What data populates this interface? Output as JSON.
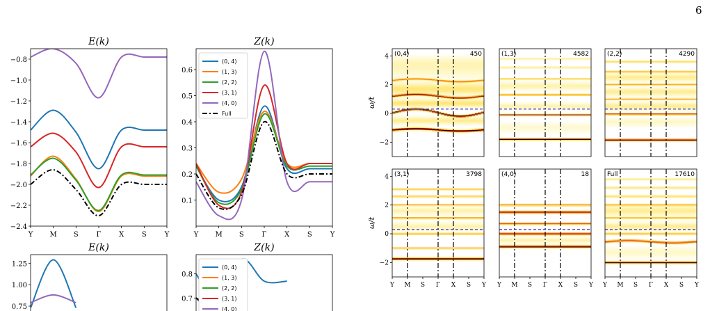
{
  "page_number": "6",
  "colors": {
    "(0, 4)": "#1f77b4",
    "(1, 3)": "#ff7f0e",
    "(2, 2)": "#2ca02c",
    "(3, 1)": "#d62728",
    "(4, 0)": "#9467bd",
    "Full": "#000000"
  },
  "kpath_labels": [
    "Y",
    "M",
    "S",
    "Γ",
    "X",
    "S",
    "Y"
  ],
  "chart_data": [
    {
      "type": "line",
      "title": "E(k)",
      "x": [
        0,
        1,
        2,
        3,
        4,
        5,
        6
      ],
      "xticklabels": [
        "Y",
        "M",
        "S",
        "Γ",
        "X",
        "S",
        "Y"
      ],
      "ylim": [
        -2.4,
        -0.7
      ],
      "yticks": [
        -2.4,
        -2.2,
        -2.0,
        -1.8,
        -1.6,
        -1.4,
        -1.2,
        -1.0,
        -0.8
      ],
      "yticklabels": [
        "−2.4",
        "−2.2",
        "−2.0",
        "−1.8",
        "−1.6",
        "−1.4",
        "−1.2",
        "−1.0",
        "−0.8"
      ],
      "series": [
        {
          "name": "(0, 4)",
          "values": [
            -1.48,
            -1.29,
            -1.5,
            -1.85,
            -1.48,
            -1.48,
            -1.48
          ]
        },
        {
          "name": "(1, 3)",
          "values": [
            -1.92,
            -1.73,
            -1.95,
            -2.26,
            -1.92,
            -1.92,
            -1.92
          ]
        },
        {
          "name": "(2, 2)",
          "values": [
            -1.91,
            -1.75,
            -1.96,
            -2.25,
            -1.91,
            -1.91,
            -1.91
          ]
        },
        {
          "name": "(3, 1)",
          "values": [
            -1.64,
            -1.51,
            -1.69,
            -2.03,
            -1.64,
            -1.64,
            -1.64
          ]
        },
        {
          "name": "(4, 0)",
          "values": [
            -0.78,
            -0.7,
            -0.84,
            -1.17,
            -0.78,
            -0.78,
            -0.78
          ]
        },
        {
          "name": "Full",
          "dashed": true,
          "values": [
            -2.0,
            -1.86,
            -2.05,
            -2.3,
            -2.0,
            -2.0,
            -2.0
          ]
        }
      ]
    },
    {
      "type": "line",
      "title": "Z(k)",
      "x": [
        0,
        1,
        2,
        3,
        4,
        5,
        6
      ],
      "xticklabels": [
        "Y",
        "M",
        "S",
        "Γ",
        "X",
        "S",
        "Y"
      ],
      "ylim": [
        0.0,
        0.68
      ],
      "yticks": [
        0.1,
        0.2,
        0.3,
        0.4,
        0.5,
        0.6
      ],
      "yticklabels": [
        "0.1",
        "0.2",
        "0.3",
        "0.4",
        "0.5",
        "0.6"
      ],
      "legend": "top-left",
      "series": [
        {
          "name": "(0, 4)",
          "values": [
            0.23,
            0.1,
            0.15,
            0.46,
            0.22,
            0.22,
            0.22
          ]
        },
        {
          "name": "(1, 3)",
          "values": [
            0.24,
            0.13,
            0.18,
            0.44,
            0.24,
            0.24,
            0.24
          ]
        },
        {
          "name": "(2, 2)",
          "values": [
            0.23,
            0.09,
            0.14,
            0.43,
            0.23,
            0.23,
            0.23
          ]
        },
        {
          "name": "(3, 1)",
          "values": [
            0.24,
            0.08,
            0.13,
            0.54,
            0.24,
            0.24,
            0.24
          ]
        },
        {
          "name": "(4, 0)",
          "values": [
            0.17,
            0.04,
            0.1,
            0.67,
            0.17,
            0.17,
            0.17
          ]
        },
        {
          "name": "Full",
          "dashed": true,
          "values": [
            0.2,
            0.07,
            0.12,
            0.4,
            0.2,
            0.2,
            0.2
          ]
        }
      ]
    },
    {
      "type": "line",
      "title": "E(k)",
      "partial": true,
      "ylim": [
        0.62,
        1.35
      ],
      "yticks": [
        0.75,
        1.0,
        1.25
      ],
      "yticklabels": [
        "0.75",
        "1.00",
        "1.25"
      ],
      "series": [
        {
          "name": "(0, 4)",
          "values": [
            0.73,
            1.29,
            0.73
          ]
        },
        {
          "name": "(4, 0)",
          "values": [
            0.79,
            0.88,
            0.79
          ]
        }
      ]
    },
    {
      "type": "line",
      "title": "Z(k)",
      "partial": true,
      "legend": "top-left",
      "ylim": [
        0.62,
        0.88
      ],
      "yticks": [
        0.7,
        0.8
      ],
      "yticklabels": [
        "0.7",
        "0.8"
      ],
      "series": [
        {
          "name": "(0, 4)",
          "values": [
            0.8,
            0.68,
            0.86,
            0.77,
            0.77
          ]
        },
        {
          "name": "(1, 3)",
          "values": [
            0.7,
            0.65,
            0.72
          ]
        },
        {
          "name": "(2, 2)",
          "values": [
            0.7,
            0.65,
            0.71
          ]
        },
        {
          "name": "(3, 1)",
          "values": [
            0.7,
            0.65,
            0.73
          ]
        },
        {
          "name": "(4, 0)",
          "values": [
            0.7,
            0.63,
            0.82
          ]
        },
        {
          "name": "Full",
          "dashed": true,
          "values": [
            0.7,
            0.64,
            0.71
          ]
        }
      ]
    },
    {
      "type": "heatmap",
      "ylabel": "ω/t",
      "ylim": [
        -3,
        4.5
      ],
      "yticks": [
        -2,
        0,
        2,
        4
      ],
      "yticklabels": [
        "−2",
        "0",
        "2",
        "4"
      ],
      "xticklabels": [
        "Y",
        "M",
        "S",
        "Γ",
        "X",
        "S",
        "Y"
      ],
      "dashed_line_omega": 0.3,
      "panels": [
        {
          "label": "(0,4)",
          "count": "450",
          "bands": [
            {
              "w": -1.15,
              "s": 0.06,
              "a": 1,
              "wave": 0.08
            },
            {
              "w": 0.05,
              "s": 0.05,
              "a": 1,
              "wave": 0.25
            },
            {
              "w": 1.2,
              "s": 0.05,
              "a": 0.8,
              "wave": 0.12
            },
            {
              "w": 2.3,
              "s": 0.05,
              "a": 0.55,
              "wave": 0.1
            },
            {
              "w": -0.5,
              "s": 0.2,
              "a": 0.25
            },
            {
              "w": 0.7,
              "s": 0.2,
              "a": 0.3
            },
            {
              "w": 1.7,
              "s": 0.3,
              "a": 0.3
            },
            {
              "w": 3.0,
              "s": 0.4,
              "a": 0.15
            },
            {
              "w": 3.6,
              "s": 0.3,
              "a": 0.12
            }
          ]
        },
        {
          "label": "(1,3)",
          "count": "4582",
          "bands": [
            {
              "w": -1.8,
              "s": 0.05,
              "a": 1
            },
            {
              "w": -0.1,
              "s": 0.04,
              "a": 0.85
            },
            {
              "w": 1.3,
              "s": 0.04,
              "a": 0.6
            },
            {
              "w": 2.4,
              "s": 0.04,
              "a": 0.45
            },
            {
              "w": 3.2,
              "s": 0.04,
              "a": 0.3
            },
            {
              "w": 3.8,
              "s": 0.05,
              "a": 0.25
            },
            {
              "w": 0.5,
              "s": 0.15,
              "a": 0.2
            },
            {
              "w": 1.9,
              "s": 0.2,
              "a": 0.2
            },
            {
              "w": -1.0,
              "s": 0.25,
              "a": 0.12
            }
          ]
        },
        {
          "label": "(2,2)",
          "count": "4290",
          "bands": [
            {
              "w": -1.85,
              "s": 0.05,
              "a": 1
            },
            {
              "w": -0.05,
              "s": 0.04,
              "a": 0.8
            },
            {
              "w": 1.0,
              "s": 0.04,
              "a": 0.55
            },
            {
              "w": 2.0,
              "s": 0.05,
              "a": 0.5
            },
            {
              "w": 2.9,
              "s": 0.05,
              "a": 0.45
            },
            {
              "w": 3.6,
              "s": 0.05,
              "a": 0.4
            },
            {
              "w": 0.5,
              "s": 0.2,
              "a": 0.25
            },
            {
              "w": 1.5,
              "s": 0.2,
              "a": 0.25
            },
            {
              "w": 2.5,
              "s": 0.2,
              "a": 0.25
            },
            {
              "w": -0.6,
              "s": 0.2,
              "a": 0.15
            }
          ]
        },
        {
          "label": "(3,1)",
          "count": "3798",
          "bands": [
            {
              "w": -1.75,
              "s": 0.06,
              "a": 1
            },
            {
              "w": -1.0,
              "s": 0.04,
              "a": 0.55
            },
            {
              "w": 0.0,
              "s": 0.04,
              "a": 0.55
            },
            {
              "w": 1.1,
              "s": 0.04,
              "a": 0.6
            },
            {
              "w": 2.0,
              "s": 0.04,
              "a": 0.55
            },
            {
              "w": 2.6,
              "s": 0.04,
              "a": 0.5
            },
            {
              "w": 3.1,
              "s": 0.05,
              "a": 0.45
            },
            {
              "w": 0.5,
              "s": 0.2,
              "a": 0.2
            },
            {
              "w": 1.6,
              "s": 0.2,
              "a": 0.2
            }
          ]
        },
        {
          "label": "(4,0)",
          "count": "18",
          "bands": [
            {
              "w": -0.9,
              "s": 0.06,
              "a": 1
            },
            {
              "w": 0.0,
              "s": 0.06,
              "a": 0.85
            },
            {
              "w": 0.7,
              "s": 0.05,
              "a": 0.75
            },
            {
              "w": 1.5,
              "s": 0.06,
              "a": 0.9
            },
            {
              "w": 2.0,
              "s": 0.05,
              "a": 0.6
            },
            {
              "w": -0.45,
              "s": 0.15,
              "a": 0.2
            }
          ]
        },
        {
          "label": "Full",
          "count": "17610",
          "bands": [
            {
              "w": -2.0,
              "s": 0.05,
              "a": 1
            },
            {
              "w": -0.55,
              "s": 0.06,
              "a": 0.75,
              "wave": 0.08
            },
            {
              "w": 0.0,
              "s": 0.05,
              "a": 0.5
            },
            {
              "w": 1.1,
              "s": 0.05,
              "a": 0.45
            },
            {
              "w": 2.0,
              "s": 0.05,
              "a": 0.45
            },
            {
              "w": 2.6,
              "s": 0.05,
              "a": 0.4
            },
            {
              "w": 3.2,
              "s": 0.05,
              "a": 0.35
            },
            {
              "w": 3.8,
              "s": 0.05,
              "a": 0.3
            },
            {
              "w": 0.5,
              "s": 0.2,
              "a": 0.25
            },
            {
              "w": 1.6,
              "s": 0.25,
              "a": 0.25
            },
            {
              "w": -1.3,
              "s": 0.25,
              "a": 0.15
            }
          ]
        }
      ]
    }
  ]
}
